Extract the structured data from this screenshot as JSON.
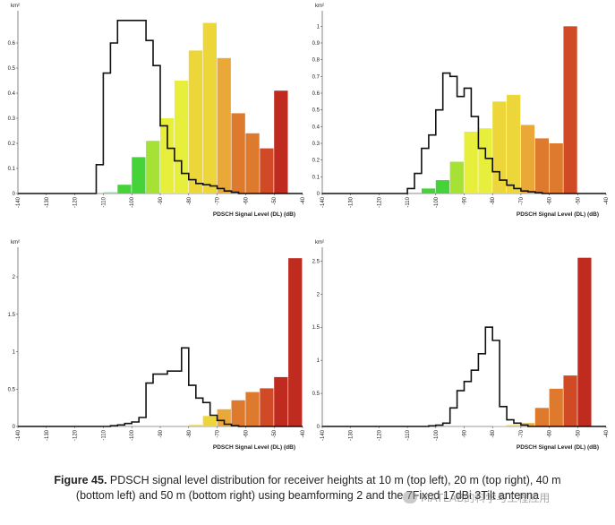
{
  "chart_data": [
    {
      "type": "bar",
      "panel": "top-left",
      "title": "",
      "xlabel": "PDSCH Signal Level (DL) (dB)",
      "ylabel": "km²",
      "xlim": [
        -140,
        -40
      ],
      "ylim": [
        0,
        0.7
      ],
      "x_ticks": [
        -140,
        -130,
        -120,
        -110,
        -100,
        -90,
        -80,
        -70,
        -60,
        -50,
        -40
      ],
      "y_ticks": [
        0,
        0.1,
        0.2,
        0.3,
        0.4,
        0.5,
        0.6
      ],
      "y_tick_labels": [
        "0",
        "0.1",
        "0.2",
        "0.3",
        "0.4",
        "0.5",
        "0.6"
      ],
      "bars": {
        "bin_start": -115,
        "bin_width": 5,
        "values": [
          0,
          0.005,
          0.035,
          0.145,
          0.21,
          0.3,
          0.45,
          0.57,
          0.68,
          0.54,
          0.32,
          0.24,
          0.18,
          0.41
        ]
      },
      "reference_step": {
        "bin_start": -140,
        "bin_width": 2.5,
        "values": [
          0,
          0,
          0,
          0,
          0,
          0,
          0,
          0,
          0,
          0,
          0,
          0.115,
          0.48,
          0.6,
          0.69,
          0.69,
          0.69,
          0.69,
          0.61,
          0.51,
          0.27,
          0.18,
          0.13,
          0.08,
          0.055,
          0.04,
          0.035,
          0.03,
          0.02,
          0.01,
          0.005,
          0,
          0,
          0,
          0,
          0,
          0,
          0,
          0,
          0
        ]
      }
    },
    {
      "type": "bar",
      "panel": "top-right",
      "title": "",
      "xlabel": "PDSCH Signal Level (DL) (dB)",
      "ylabel": "km²",
      "xlim": [
        -140,
        -40
      ],
      "ylim": [
        0,
        1.05
      ],
      "x_ticks": [
        -140,
        -130,
        -120,
        -110,
        -100,
        -90,
        -80,
        -70,
        -60,
        -50,
        -40
      ],
      "y_ticks": [
        0,
        0.1,
        0.2,
        0.3,
        0.4,
        0.5,
        0.6,
        0.7,
        0.8,
        0.9,
        1
      ],
      "y_tick_labels": [
        "0",
        "0.1",
        "0.2",
        "0.3",
        "0.4",
        "0.5",
        "0.6",
        "0.7",
        "0.8",
        "0.9",
        "1"
      ],
      "bars": {
        "bin_start": -110,
        "bin_width": 5,
        "values": [
          0.005,
          0.03,
          0.08,
          0.19,
          0.37,
          0.39,
          0.55,
          0.59,
          0.41,
          0.33,
          0.3,
          1.0
        ]
      },
      "reference_step": {
        "bin_start": -140,
        "bin_width": 2.5,
        "values": [
          0,
          0,
          0,
          0,
          0,
          0,
          0,
          0,
          0,
          0,
          0,
          0,
          0.03,
          0.12,
          0.27,
          0.35,
          0.5,
          0.72,
          0.7,
          0.58,
          0.63,
          0.46,
          0.27,
          0.21,
          0.13,
          0.08,
          0.05,
          0.03,
          0.015,
          0.01,
          0.005,
          0,
          0,
          0,
          0,
          0,
          0,
          0,
          0,
          0
        ]
      }
    },
    {
      "type": "bar",
      "panel": "bottom-left",
      "title": "",
      "xlabel": "PDSCH Signal Level (DL) (dB)",
      "ylabel": "km²",
      "xlim": [
        -140,
        -40
      ],
      "ylim": [
        0,
        2.3
      ],
      "x_ticks": [
        -140,
        -130,
        -120,
        -110,
        -100,
        -90,
        -80,
        -70,
        -60,
        -50,
        -40
      ],
      "y_ticks": [
        0,
        0.5,
        1,
        1.5,
        2
      ],
      "y_tick_labels": [
        "0",
        "0.5",
        "1",
        "1.5",
        "2"
      ],
      "bars": {
        "bin_start": -80,
        "bin_width": 5,
        "values": [
          0.02,
          0.14,
          0.23,
          0.35,
          0.46,
          0.51,
          0.66,
          2.25
        ]
      },
      "reference_step": {
        "bin_start": -140,
        "bin_width": 2.5,
        "values": [
          0,
          0,
          0,
          0,
          0,
          0,
          0,
          0,
          0,
          0,
          0,
          0,
          0,
          0.01,
          0.02,
          0.04,
          0.06,
          0.12,
          0.58,
          0.7,
          0.7,
          0.74,
          0.74,
          1.05,
          0.55,
          0.38,
          0.32,
          0.15,
          0.08,
          0.03,
          0.01,
          0,
          0,
          0,
          0,
          0,
          0,
          0,
          0,
          0
        ]
      }
    },
    {
      "type": "bar",
      "panel": "bottom-right",
      "title": "",
      "xlabel": "PDSCH Signal Level (DL) (dB)",
      "ylabel": "km²",
      "xlim": [
        -140,
        -40
      ],
      "ylim": [
        0,
        2.6
      ],
      "x_ticks": [
        -140,
        -130,
        -120,
        -110,
        -100,
        -90,
        -80,
        -70,
        -60,
        -50,
        -40
      ],
      "y_ticks": [
        0,
        0.5,
        1,
        1.5,
        2,
        2.5
      ],
      "y_tick_labels": [
        "0",
        "0.5",
        "1",
        "1.5",
        "2",
        "2.5"
      ],
      "bars": {
        "bin_start": -80,
        "bin_width": 5,
        "values": [
          0.005,
          0.02,
          0.05,
          0.28,
          0.57,
          0.77,
          2.55
        ]
      },
      "reference_step": {
        "bin_start": -140,
        "bin_width": 2.5,
        "values": [
          0,
          0,
          0,
          0,
          0,
          0,
          0,
          0,
          0,
          0,
          0,
          0,
          0,
          0,
          0,
          0.01,
          0.02,
          0.05,
          0.28,
          0.54,
          0.68,
          0.85,
          1.1,
          1.5,
          1.3,
          0.3,
          0.1,
          0.05,
          0.02,
          0,
          0,
          0,
          0,
          0,
          0,
          0,
          0,
          0,
          0,
          0
        ]
      }
    }
  ],
  "caption": {
    "figure_label": "Figure 45.",
    "text": " PDSCH signal level distribution for receiver heights at 10 m (top left), 20 m (top right), 40 m (bottom left) and 50 m (bottom right) using beamforming 2 and the 7Fixed 17dBi 3Tilt antenna"
  },
  "watermark": {
    "text": "MATLAB的科学与工程应用",
    "icon": "wechat-icon"
  },
  "colors": {
    "reference_line": "#111111",
    "color_scale": [
      "#7adcf2",
      "#7ee08a",
      "#46d33a",
      "#a6e236",
      "#e8ee3c",
      "#ecd63a",
      "#e9a838",
      "#de7a2e",
      "#cf4a25",
      "#bf2b1f"
    ]
  }
}
